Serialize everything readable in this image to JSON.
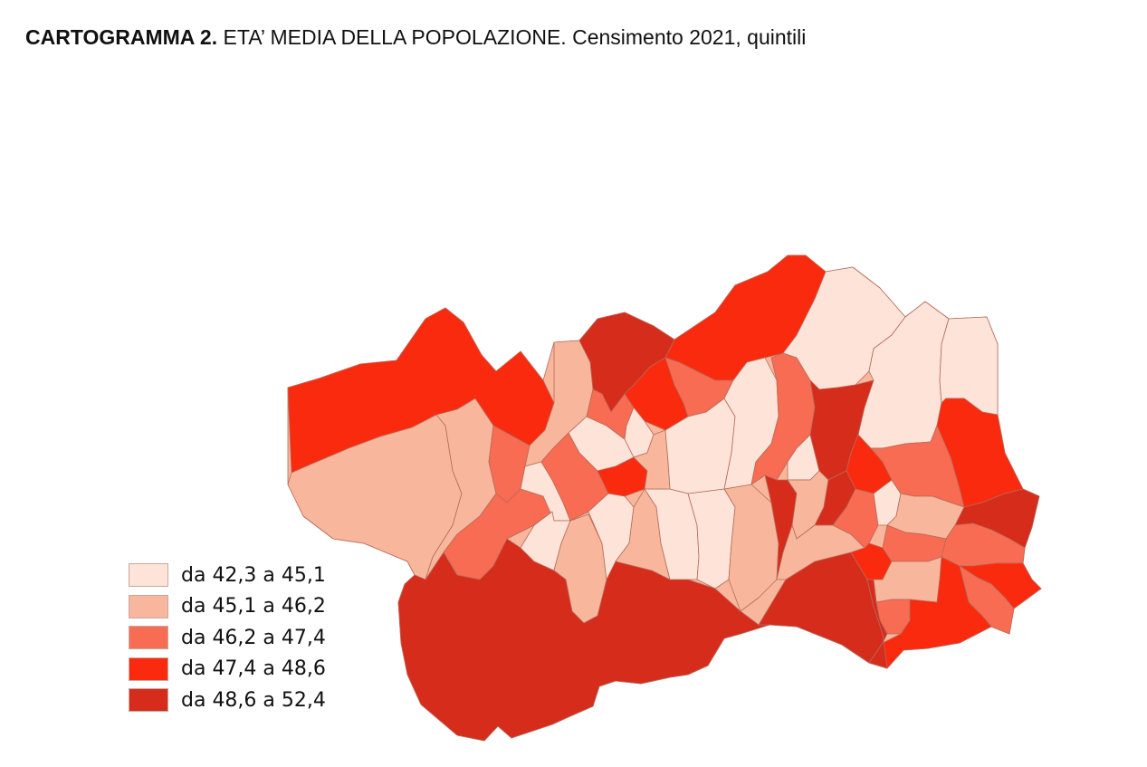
{
  "title": {
    "bold": "CARTOGRAMMA 2.",
    "rest": " ETA’ MEDIA DELLA POPOLAZIONE. Censimento 2021, quintili"
  },
  "palette": {
    "c1": "#fde3d8",
    "c2": "#f8b79d",
    "c3": "#f76c52",
    "c4": "#fa2a0e",
    "c5": "#d52c1c"
  },
  "legend": [
    {
      "label": "da 42,3 a 45,1",
      "class": "c1"
    },
    {
      "label": "da 45,1 a 46,2",
      "class": "c2"
    },
    {
      "label": "da 46,2 a 47,4",
      "class": "c3"
    },
    {
      "label": "da 47,4 a 48,6",
      "class": "c4"
    },
    {
      "label": "da 48,6 a 52,4",
      "class": "c5"
    }
  ],
  "map": {
    "region": "Valle d'Aosta",
    "classes": [
      "c1",
      "c2",
      "c3",
      "c4",
      "c5"
    ]
  }
}
